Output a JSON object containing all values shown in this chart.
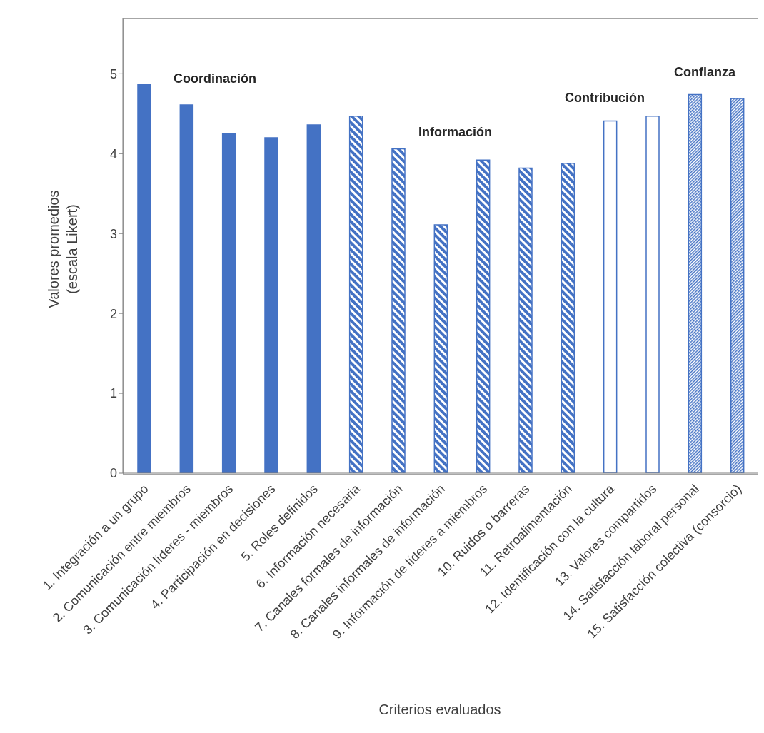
{
  "chart_data": {
    "type": "bar",
    "stacked": true,
    "xlabel": "Criterios evaluados",
    "ylabel": "Valores promedios\n(escala Likert)",
    "categories": [
      "1. Integración a un grupo",
      "2. Comunicación entre miembros",
      "3. Comunicación líderes - miembros",
      "4. Participación en decisiones",
      "5. Roles definidos",
      "6. Información necesaria",
      "7. Canales formales de información",
      "8. Canales informales de información",
      "9. Información de líderes a miembros",
      "10. Ruidos o barreras",
      "11. Retroalimentación",
      "12. Identificación con la cultura",
      "13. Valores compartidos",
      "14. Satisfacción laboral personal",
      "15. Satisfacción colectiva (consorcio)"
    ],
    "series": [
      {
        "color": "#4472c4",
        "values": [
          4.87,
          4.61,
          4.25,
          4.2,
          4.36,
          null,
          null,
          null,
          null,
          null,
          null,
          null,
          null,
          null,
          null
        ]
      },
      {
        "color": "#4472c4",
        "values": [
          null,
          null,
          null,
          null,
          null,
          4.47,
          4.06,
          3.11,
          3.92,
          3.82,
          3.88,
          null,
          null,
          null,
          null
        ]
      },
      {
        "color": "#4472c4",
        "values": [
          null,
          null,
          null,
          null,
          null,
          null,
          null,
          null,
          null,
          null,
          null,
          4.41,
          4.47,
          null,
          null
        ]
      },
      {
        "color": "#4472c4",
        "values": [
          null,
          null,
          null,
          null,
          null,
          null,
          null,
          null,
          null,
          null,
          null,
          null,
          null,
          4.74,
          4.69
        ]
      }
    ],
    "ylim": [
      0,
      5.7
    ],
    "yticks": [
      0,
      1,
      2,
      3,
      4,
      5
    ],
    "annotations": [
      "Coordinación",
      "Información",
      "Contribución",
      "Confianza"
    ]
  }
}
